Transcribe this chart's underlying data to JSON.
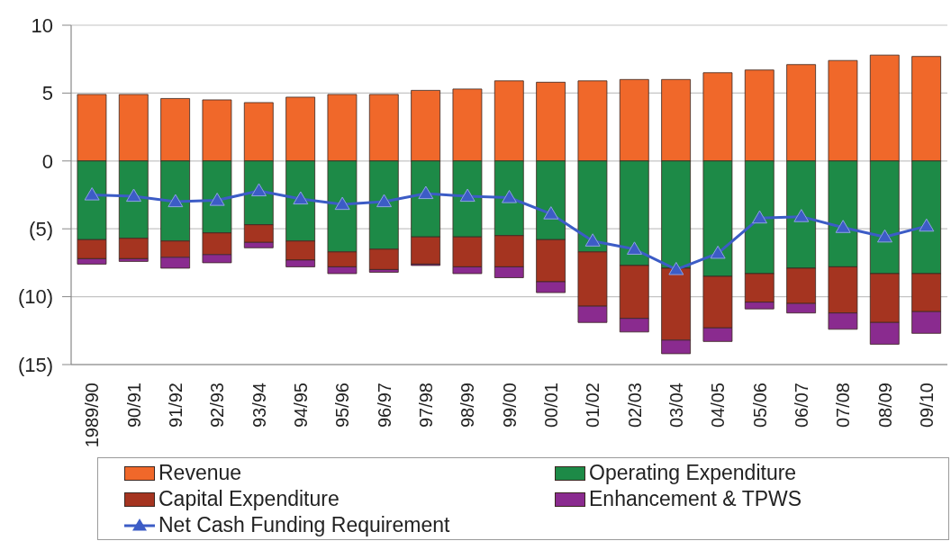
{
  "chart_data": {
    "type": "bar",
    "stacked": true,
    "categories": [
      "1989/90",
      "90/91",
      "91/92",
      "92/93",
      "93/94",
      "94/95",
      "95/96",
      "96/97",
      "97/98",
      "98/99",
      "99/00",
      "00/01",
      "01/02",
      "02/03",
      "03/04",
      "04/05",
      "05/06",
      "06/07",
      "07/08",
      "08/09",
      "09/10"
    ],
    "series": [
      {
        "name": "Revenue",
        "color": "#f0682a",
        "values": [
          4.9,
          4.9,
          4.6,
          4.5,
          4.3,
          4.7,
          4.9,
          4.9,
          5.2,
          5.3,
          5.9,
          5.8,
          5.9,
          6.0,
          6.0,
          6.5,
          6.7,
          7.1,
          7.4,
          7.8,
          7.7
        ]
      },
      {
        "name": "Operating Expenditure",
        "color": "#1d8a47",
        "values": [
          -5.8,
          -5.7,
          -5.9,
          -5.3,
          -4.7,
          -5.9,
          -6.7,
          -6.5,
          -5.6,
          -5.6,
          -5.5,
          -5.8,
          -6.7,
          -7.7,
          -7.9,
          -8.5,
          -8.3,
          -7.9,
          -7.8,
          -8.3,
          -8.3
        ]
      },
      {
        "name": "Capital Expenditure",
        "color": "#a53420",
        "values": [
          -1.4,
          -1.5,
          -1.2,
          -1.6,
          -1.3,
          -1.4,
          -1.1,
          -1.5,
          -2.0,
          -2.2,
          -2.3,
          -3.1,
          -4.0,
          -3.9,
          -5.3,
          -3.8,
          -2.1,
          -2.6,
          -3.4,
          -3.6,
          -2.8
        ]
      },
      {
        "name": "Enhancement & TPWS",
        "color": "#8a2b8f",
        "values": [
          -0.4,
          -0.2,
          -0.8,
          -0.6,
          -0.4,
          -0.5,
          -0.5,
          -0.2,
          -0.1,
          -0.5,
          -0.8,
          -0.8,
          -1.2,
          -1.0,
          -1.0,
          -1.0,
          -0.5,
          -0.7,
          -1.2,
          -1.6,
          -1.6
        ]
      },
      {
        "name": "Net Cash Funding Requirement",
        "type": "line",
        "color": "#3c5cc6",
        "values": [
          -2.5,
          -2.6,
          -3.0,
          -2.9,
          -2.2,
          -2.8,
          -3.2,
          -3.0,
          -2.4,
          -2.6,
          -2.7,
          -3.9,
          -5.9,
          -6.5,
          -8.0,
          -6.8,
          -4.2,
          -4.1,
          -4.9,
          -5.6,
          -4.8
        ]
      }
    ],
    "ylim": [
      -15,
      10
    ],
    "yticks": [
      {
        "value": -15,
        "label": "(15)"
      },
      {
        "value": -10,
        "label": "(10)"
      },
      {
        "value": -5,
        "label": "(5)"
      },
      0,
      5,
      10
    ],
    "grid": "y",
    "legend": "bottom",
    "marker": "triangle"
  }
}
